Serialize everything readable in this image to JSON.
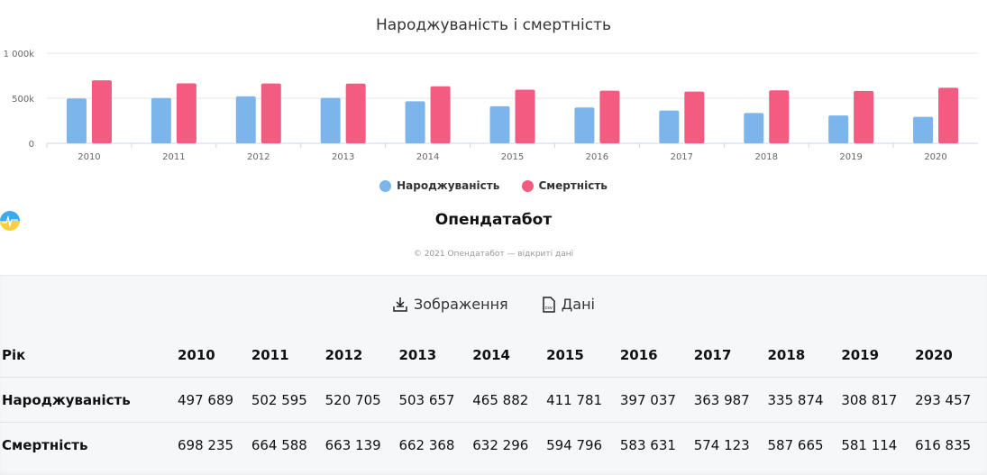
{
  "chart_data": {
    "type": "bar",
    "title": "Народжуваність і смертність",
    "categories": [
      "2010",
      "2011",
      "2012",
      "2013",
      "2014",
      "2015",
      "2016",
      "2017",
      "2018",
      "2019",
      "2020"
    ],
    "series": [
      {
        "name": "Народжуваність",
        "color": "#7cb5ec",
        "values": [
          497689,
          502595,
          520705,
          503657,
          465882,
          411781,
          397037,
          363987,
          335874,
          308817,
          293457
        ]
      },
      {
        "name": "Смертність",
        "color": "#f45b81",
        "values": [
          698235,
          664588,
          663139,
          662368,
          632296,
          594796,
          583631,
          574123,
          587665,
          581114,
          616835
        ]
      }
    ],
    "ylim": [
      0,
      1000000
    ],
    "yticks": [
      "0",
      "500k",
      "1 000k"
    ],
    "grid": true,
    "legend": "bottom"
  },
  "branding": {
    "logo": "Опендатабот",
    "copyright": "© 2021 Опендатабот — відкриті дані"
  },
  "actions": {
    "image_label": "Зображення",
    "data_label": "Дані"
  },
  "table": {
    "header": "Рік",
    "rows": [
      {
        "label": "Народжуваність",
        "values": [
          "497 689",
          "502 595",
          "520 705",
          "503 657",
          "465 882",
          "411 781",
          "397 037",
          "363 987",
          "335 874",
          "308 817",
          "293 457"
        ]
      },
      {
        "label": "Смертність",
        "values": [
          "698 235",
          "664 588",
          "663 139",
          "662 368",
          "632 296",
          "594 796",
          "583 631",
          "574 123",
          "587 665",
          "581 114",
          "616 835"
        ]
      }
    ]
  }
}
